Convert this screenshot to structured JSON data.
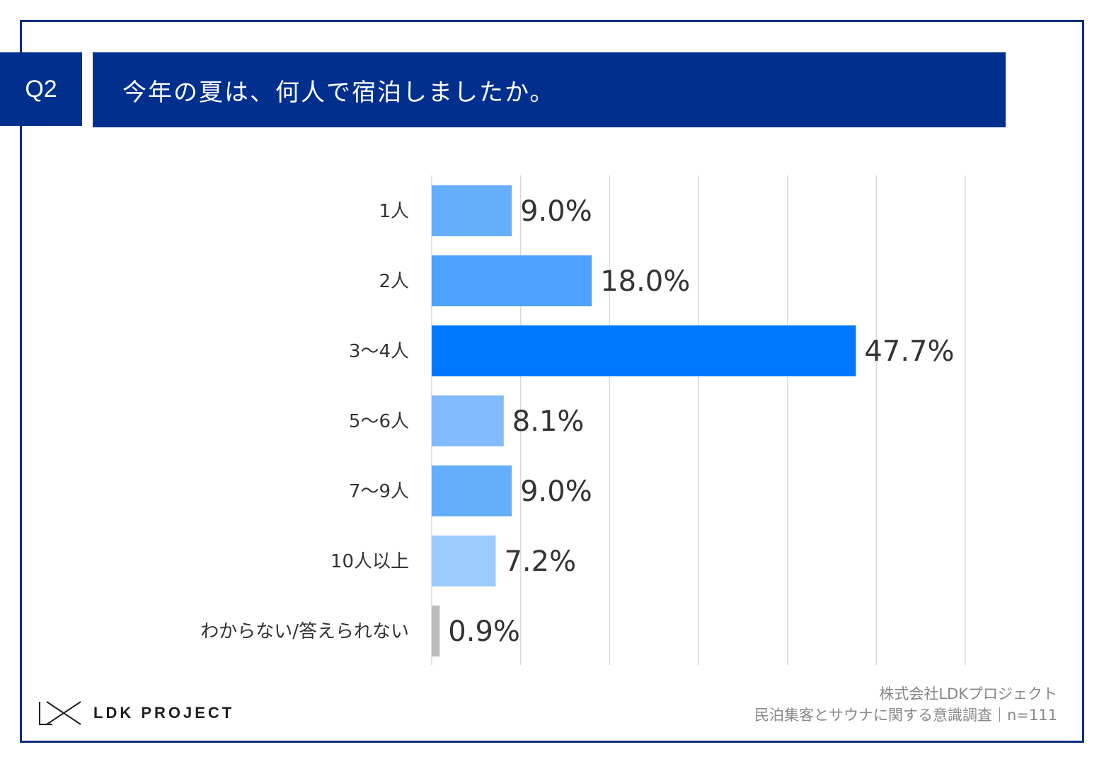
{
  "header": {
    "question_badge": "Q2",
    "title": "今年の夏は、何人で宿泊しましたか。"
  },
  "chart_data": {
    "type": "bar",
    "orientation": "horizontal",
    "title": "今年の夏は、何人で宿泊しましたか。",
    "categories": [
      "1人",
      "2人",
      "3～4人",
      "5～6人",
      "7～9人",
      "10人以上",
      "わからない/答えられない"
    ],
    "values": [
      9.0,
      18.0,
      47.7,
      8.1,
      9.0,
      7.2,
      0.9
    ],
    "value_labels": [
      "9.0%",
      "18.0%",
      "47.7%",
      "8.1%",
      "9.0%",
      "7.2%",
      "0.9%"
    ],
    "colors": [
      "#64aefc",
      "#4ca2fc",
      "#0077ff",
      "#82bbfd",
      "#64aefc",
      "#9ccbfe",
      "#bcbcbc"
    ],
    "xlim": [
      0,
      60
    ],
    "grid": true,
    "xlabel": "",
    "ylabel": ""
  },
  "footer": {
    "logo_text": "LDK PROJECT",
    "company": "株式会社LDKプロジェクト",
    "survey": "民泊集客とサウナに関する意識調査｜n=111"
  }
}
